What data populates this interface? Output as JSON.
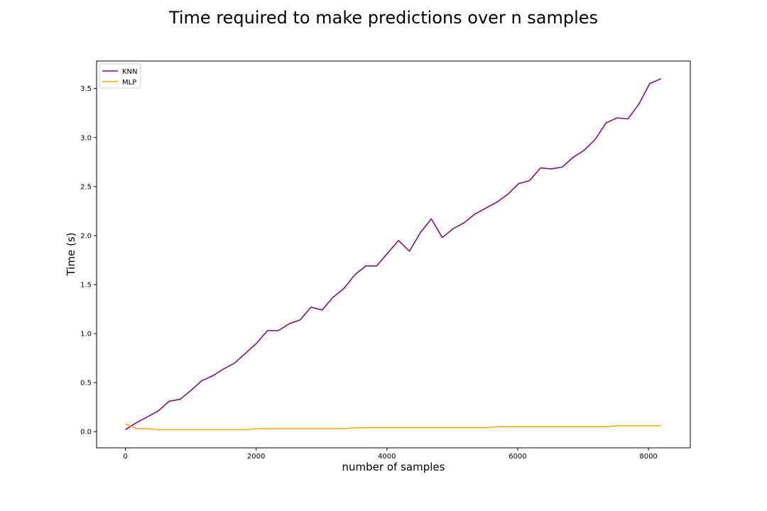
{
  "chart_data": {
    "type": "line",
    "title": "Time required to make predictions over n samples",
    "xlabel": "number of samples",
    "ylabel": "Time (s)",
    "xlim": [
      -440,
      8640
    ],
    "ylim": [
      -0.165,
      3.78
    ],
    "xticks": [
      0,
      2000,
      4000,
      6000,
      8000
    ],
    "xtick_labels": [
      "0",
      "2000",
      "4000",
      "6000",
      "8000"
    ],
    "yticks": [
      0.0,
      0.5,
      1.0,
      1.5,
      2.0,
      2.5,
      3.0,
      3.5
    ],
    "ytick_labels": [
      "0.0",
      "0.5",
      "1.0",
      "1.5",
      "2.0",
      "2.5",
      "3.0",
      "3.5"
    ],
    "legend_position": "top-left",
    "grid": false,
    "x": [
      0,
      167,
      334,
      501,
      668,
      836,
      1003,
      1170,
      1337,
      1504,
      1671,
      1838,
      2005,
      2172,
      2339,
      2506,
      2673,
      2840,
      3008,
      3175,
      3342,
      3509,
      3676,
      3843,
      4010,
      4177,
      4344,
      4512,
      4679,
      4846,
      5013,
      5180,
      5347,
      5514,
      5681,
      5848,
      6015,
      6182,
      6349,
      6516,
      6684,
      6851,
      7018,
      7185,
      7352,
      7519,
      7686,
      7853,
      8020,
      8192
    ],
    "series": [
      {
        "name": "KNN",
        "color": "#800080",
        "values": [
          0.02,
          0.09,
          0.15,
          0.21,
          0.31,
          0.33,
          0.42,
          0.52,
          0.57,
          0.64,
          0.7,
          0.8,
          0.9,
          1.03,
          1.03,
          1.1,
          1.14,
          1.27,
          1.24,
          1.37,
          1.46,
          1.6,
          1.69,
          1.69,
          1.82,
          1.95,
          1.84,
          2.03,
          2.17,
          1.98,
          2.07,
          2.13,
          2.22,
          2.28,
          2.34,
          2.42,
          2.53,
          2.56,
          2.69,
          2.68,
          2.7,
          2.8,
          2.87,
          2.98,
          3.15,
          3.2,
          3.19,
          3.34,
          3.55,
          3.6
        ]
      },
      {
        "name": "MLP",
        "color": "#ffa500",
        "values": [
          0.08,
          0.03,
          0.03,
          0.02,
          0.02,
          0.02,
          0.02,
          0.02,
          0.02,
          0.02,
          0.02,
          0.02,
          0.03,
          0.03,
          0.03,
          0.03,
          0.03,
          0.03,
          0.03,
          0.03,
          0.03,
          0.04,
          0.04,
          0.04,
          0.04,
          0.04,
          0.04,
          0.04,
          0.04,
          0.04,
          0.04,
          0.04,
          0.04,
          0.04,
          0.05,
          0.05,
          0.05,
          0.05,
          0.05,
          0.05,
          0.05,
          0.05,
          0.05,
          0.05,
          0.05,
          0.06,
          0.06,
          0.06,
          0.06,
          0.06
        ]
      }
    ]
  }
}
